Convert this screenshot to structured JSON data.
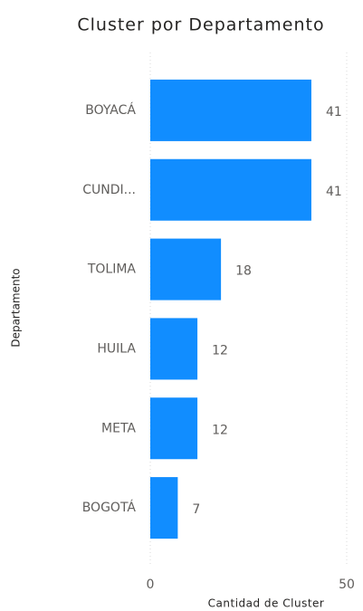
{
  "chart_data": {
    "type": "bar",
    "orientation": "horizontal",
    "title": "Cluster por Departamento",
    "x_label": "Cantidad de Cluster",
    "y_label": "Departamento",
    "categories": [
      "BOYACÁ",
      "CUNDI...",
      "TOLIMA",
      "HUILA",
      "META",
      "BOGOTÁ"
    ],
    "values": [
      41,
      41,
      18,
      12,
      12,
      7
    ],
    "color": "#118dff",
    "xlim": [
      0,
      50
    ],
    "xticks": [
      0,
      50
    ],
    "grid": true
  }
}
